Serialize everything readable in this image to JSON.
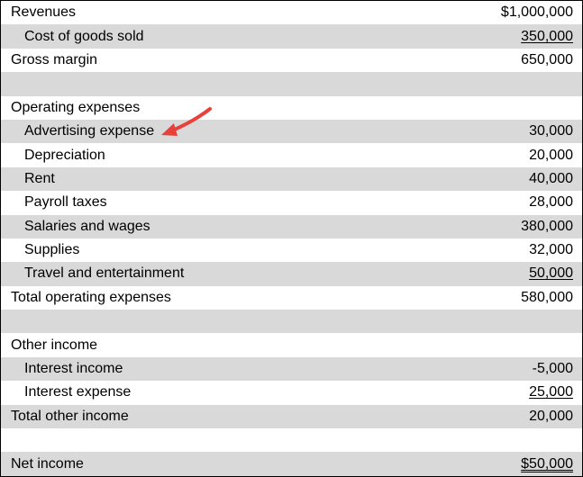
{
  "statement": {
    "rows": [
      {
        "label": "Revenues",
        "value": "$1,000,000"
      },
      {
        "label": "Cost of goods sold",
        "value": "350,000"
      },
      {
        "label": "Gross margin",
        "value": "650,000"
      },
      {
        "label": "",
        "value": ""
      },
      {
        "label": "Operating expenses",
        "value": ""
      },
      {
        "label": "Advertising expense",
        "value": "30,000"
      },
      {
        "label": "Depreciation",
        "value": "20,000"
      },
      {
        "label": "Rent",
        "value": "40,000"
      },
      {
        "label": "Payroll taxes",
        "value": "28,000"
      },
      {
        "label": "Salaries and wages",
        "value": "380,000"
      },
      {
        "label": "Supplies",
        "value": "32,000"
      },
      {
        "label": "Travel and entertainment",
        "value": "50,000"
      },
      {
        "label": "Total operating expenses",
        "value": "580,000"
      },
      {
        "label": "",
        "value": ""
      },
      {
        "label": "Other income",
        "value": ""
      },
      {
        "label": "Interest income",
        "value": "-5,000"
      },
      {
        "label": "Interest expense",
        "value": "25,000"
      },
      {
        "label": "Total other income",
        "value": "20,000"
      },
      {
        "label": "",
        "value": ""
      },
      {
        "label": "Net income",
        "value": "$50,000"
      }
    ]
  },
  "colors": {
    "shade": "#d9d9d9",
    "arrow": "#e8413c"
  },
  "icons": {
    "pointer": "red-arrow-icon"
  }
}
